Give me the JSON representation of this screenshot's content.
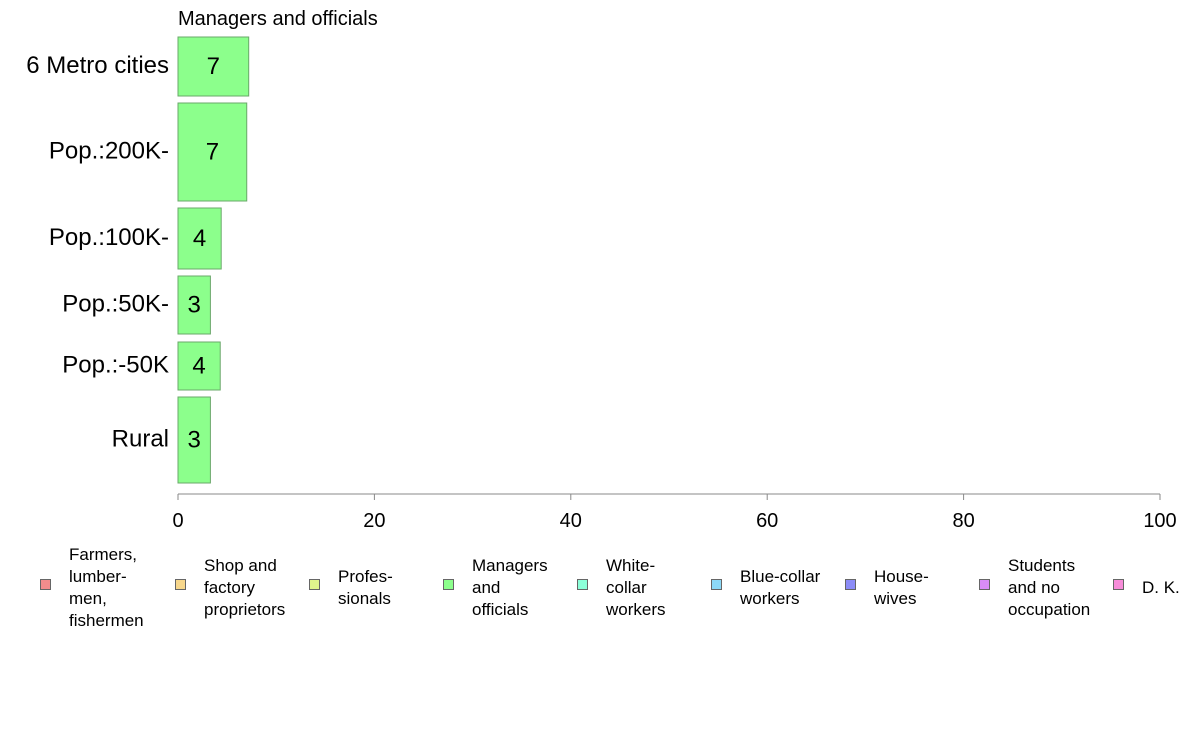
{
  "chart_data": {
    "type": "bar",
    "orientation": "horizontal",
    "title": "Managers and officials",
    "categories": [
      "6 Metro cities",
      "Pop.:200K-",
      "Pop.:100K-",
      "Pop.:50K-",
      "Pop.:-50K",
      "Rural"
    ],
    "values": [
      7.2,
      7.0,
      4.4,
      3.3,
      4.3,
      3.3
    ],
    "value_labels": [
      "7",
      "7",
      "4",
      "3",
      "4",
      "3"
    ],
    "xlim": [
      0,
      100
    ],
    "xticks": [
      "0",
      "20",
      "40",
      "60",
      "80",
      "100"
    ],
    "grid": false,
    "bar_color": "#8cff8c",
    "legend_placement": "bottom",
    "legend": [
      {
        "label": "Farmers,\nlumber-\nmen,\nfishermen",
        "color": "#f28c8c"
      },
      {
        "label": "Shop and\nfactory\nproprietors",
        "color": "#f7d78c"
      },
      {
        "label": "Profes-\nsionals",
        "color": "#e0f58c"
      },
      {
        "label": "Managers\nand\nofficials",
        "color": "#8cff8c"
      },
      {
        "label": "White-\ncollar\nworkers",
        "color": "#8cffd9"
      },
      {
        "label": "Blue-collar\nworkers",
        "color": "#8cd9f7"
      },
      {
        "label": "House-\nwives",
        "color": "#8c8cf7"
      },
      {
        "label": "Students\nand no\noccupation",
        "color": "#d98cf7"
      },
      {
        "label": "D. K.",
        "color": "#f78cd9"
      }
    ]
  }
}
